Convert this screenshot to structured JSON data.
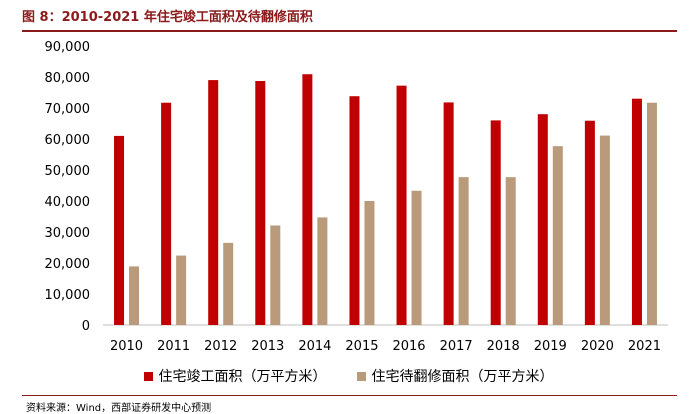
{
  "figure": {
    "title": "图 8：2010-2021 年住宅竣工面积及待翻修面积",
    "source": "资料来源：Wind，西部证券研发中心预测"
  },
  "colors": {
    "series1": "#c00000",
    "series2": "#b99a7b",
    "accent": "#8b1a1a"
  },
  "chart_data": {
    "type": "bar",
    "categories": [
      "2010",
      "2011",
      "2012",
      "2013",
      "2014",
      "2015",
      "2016",
      "2017",
      "2018",
      "2019",
      "2020",
      "2021"
    ],
    "series": [
      {
        "name": "住宅竣工面积（万平方米）",
        "values": [
          61000,
          71700,
          79000,
          78700,
          80900,
          73800,
          77200,
          71800,
          66000,
          68000,
          65900,
          73000
        ]
      },
      {
        "name": "住宅待翻修面积（万平方米）",
        "values": [
          18900,
          22400,
          26500,
          32100,
          34700,
          40000,
          43300,
          47700,
          47700,
          57700,
          61100,
          71700
        ]
      }
    ],
    "yticks": [
      "0",
      "10,000",
      "20,000",
      "30,000",
      "40,000",
      "50,000",
      "60,000",
      "70,000",
      "80,000",
      "90,000"
    ],
    "ylim": [
      0,
      90000
    ],
    "legend_position": "bottom",
    "grid": false
  }
}
